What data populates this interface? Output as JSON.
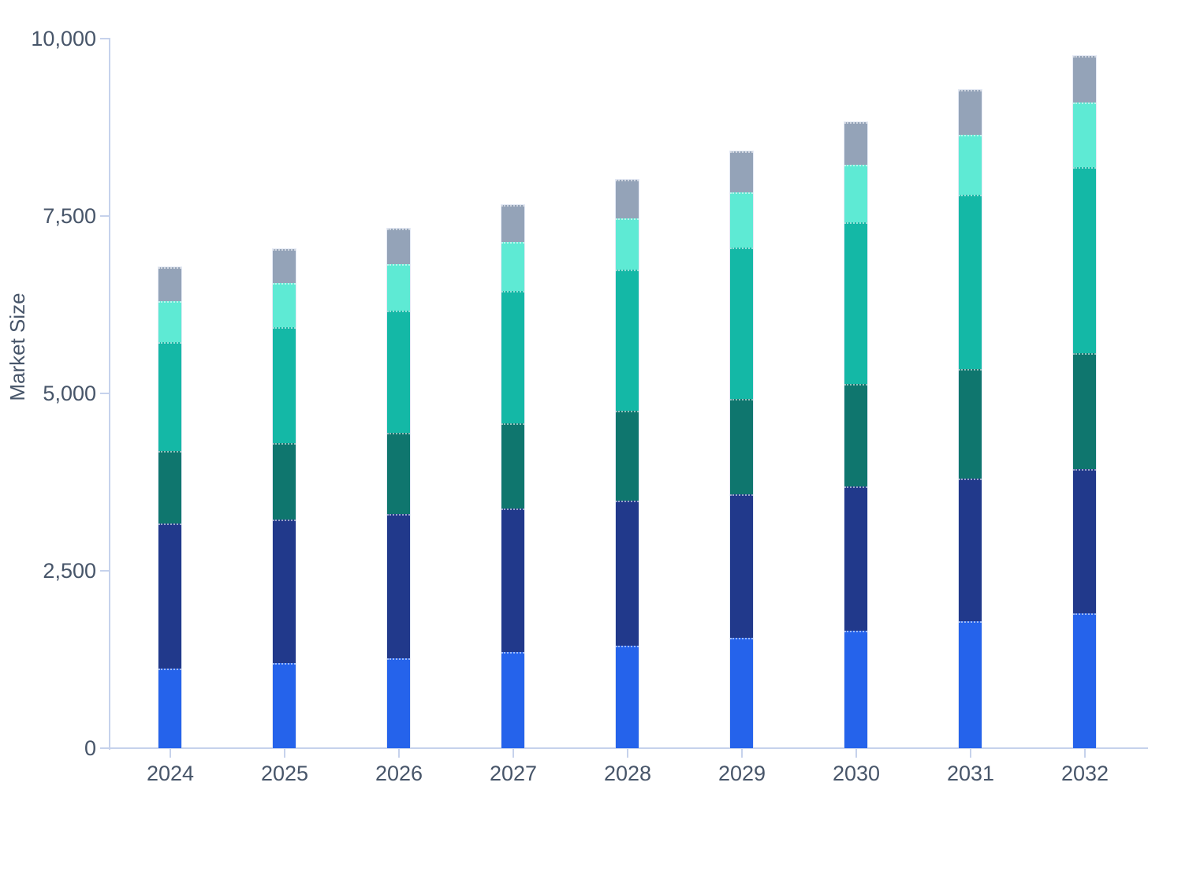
{
  "chart_data": {
    "type": "bar",
    "stacked": true,
    "title": "",
    "xlabel": "",
    "ylabel": "Market Size",
    "categories": [
      "2024",
      "2025",
      "2026",
      "2027",
      "2028",
      "2029",
      "2030",
      "2031",
      "2032"
    ],
    "series": [
      {
        "name": "blue",
        "color": "#2563EB",
        "values": [
          1120,
          1200,
          1270,
          1350,
          1440,
          1550,
          1650,
          1790,
          1900
        ]
      },
      {
        "name": "navy",
        "color": "#21398B",
        "values": [
          2050,
          2020,
          2030,
          2030,
          2050,
          2025,
          2035,
          2010,
          2030
        ]
      },
      {
        "name": "dark-teal",
        "color": "#0F766E",
        "values": [
          1020,
          1080,
          1140,
          1195,
          1260,
          1345,
          1445,
          1540,
          1635
        ]
      },
      {
        "name": "teal",
        "color": "#14B8A6",
        "values": [
          1530,
          1630,
          1725,
          1870,
          1990,
          2140,
          2280,
          2460,
          2625
        ]
      },
      {
        "name": "mint",
        "color": "#5EEAD4",
        "values": [
          580,
          620,
          655,
          685,
          730,
          775,
          810,
          840,
          910
        ]
      },
      {
        "name": "gray",
        "color": "#94A3B8",
        "values": [
          475,
          480,
          505,
          530,
          545,
          575,
          605,
          635,
          660
        ]
      }
    ],
    "totals": [
      6775,
      7030,
      7325,
      7660,
      8015,
      8410,
      8825,
      9275,
      9760
    ],
    "ylim": [
      0,
      10000
    ],
    "yticks": [
      0,
      2500,
      5000,
      7500,
      10000
    ],
    "ytick_labels": [
      "0",
      "2,500",
      "5,000",
      "7,500",
      "10,000"
    ],
    "grid": false,
    "legend": false
  },
  "style": {
    "background": "#FFFFFF",
    "axis_color": "#C6D2EC",
    "label_color": "#475569",
    "bar_outline": "rgba(203,214,236,0.5)",
    "segment_separator": "rgba(255,255,255,0.55)"
  }
}
